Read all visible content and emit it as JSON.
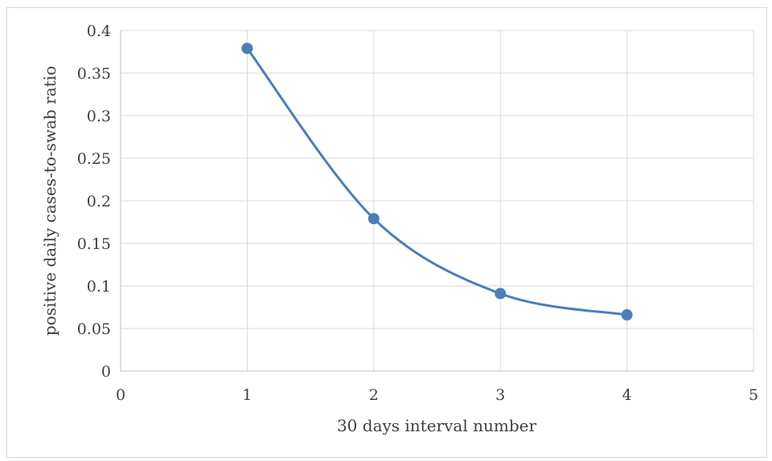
{
  "chart_data": {
    "type": "line",
    "title": "",
    "xlabel": "30 days interval number",
    "ylabel": "positive daily cases-to-swab ratio",
    "xlim": [
      0,
      5
    ],
    "ylim": [
      0,
      0.4
    ],
    "xticks": [
      0,
      1,
      2,
      3,
      4,
      5
    ],
    "yticks": [
      0,
      0.05,
      0.1,
      0.15,
      0.2,
      0.25,
      0.3,
      0.35,
      0.4
    ],
    "xtick_labels": [
      "0",
      "1",
      "2",
      "3",
      "4",
      "5"
    ],
    "ytick_labels": [
      "0",
      "0.05",
      "0.1",
      "0.15",
      "0.2",
      "0.25",
      "0.3",
      "0.35",
      "0.4"
    ],
    "grid": true,
    "smooth": true,
    "legend": "none",
    "series": [
      {
        "color": "#4a7ebb",
        "x": [
          1,
          2,
          3,
          4
        ],
        "y": [
          0.379,
          0.179,
          0.091,
          0.066
        ]
      }
    ]
  }
}
